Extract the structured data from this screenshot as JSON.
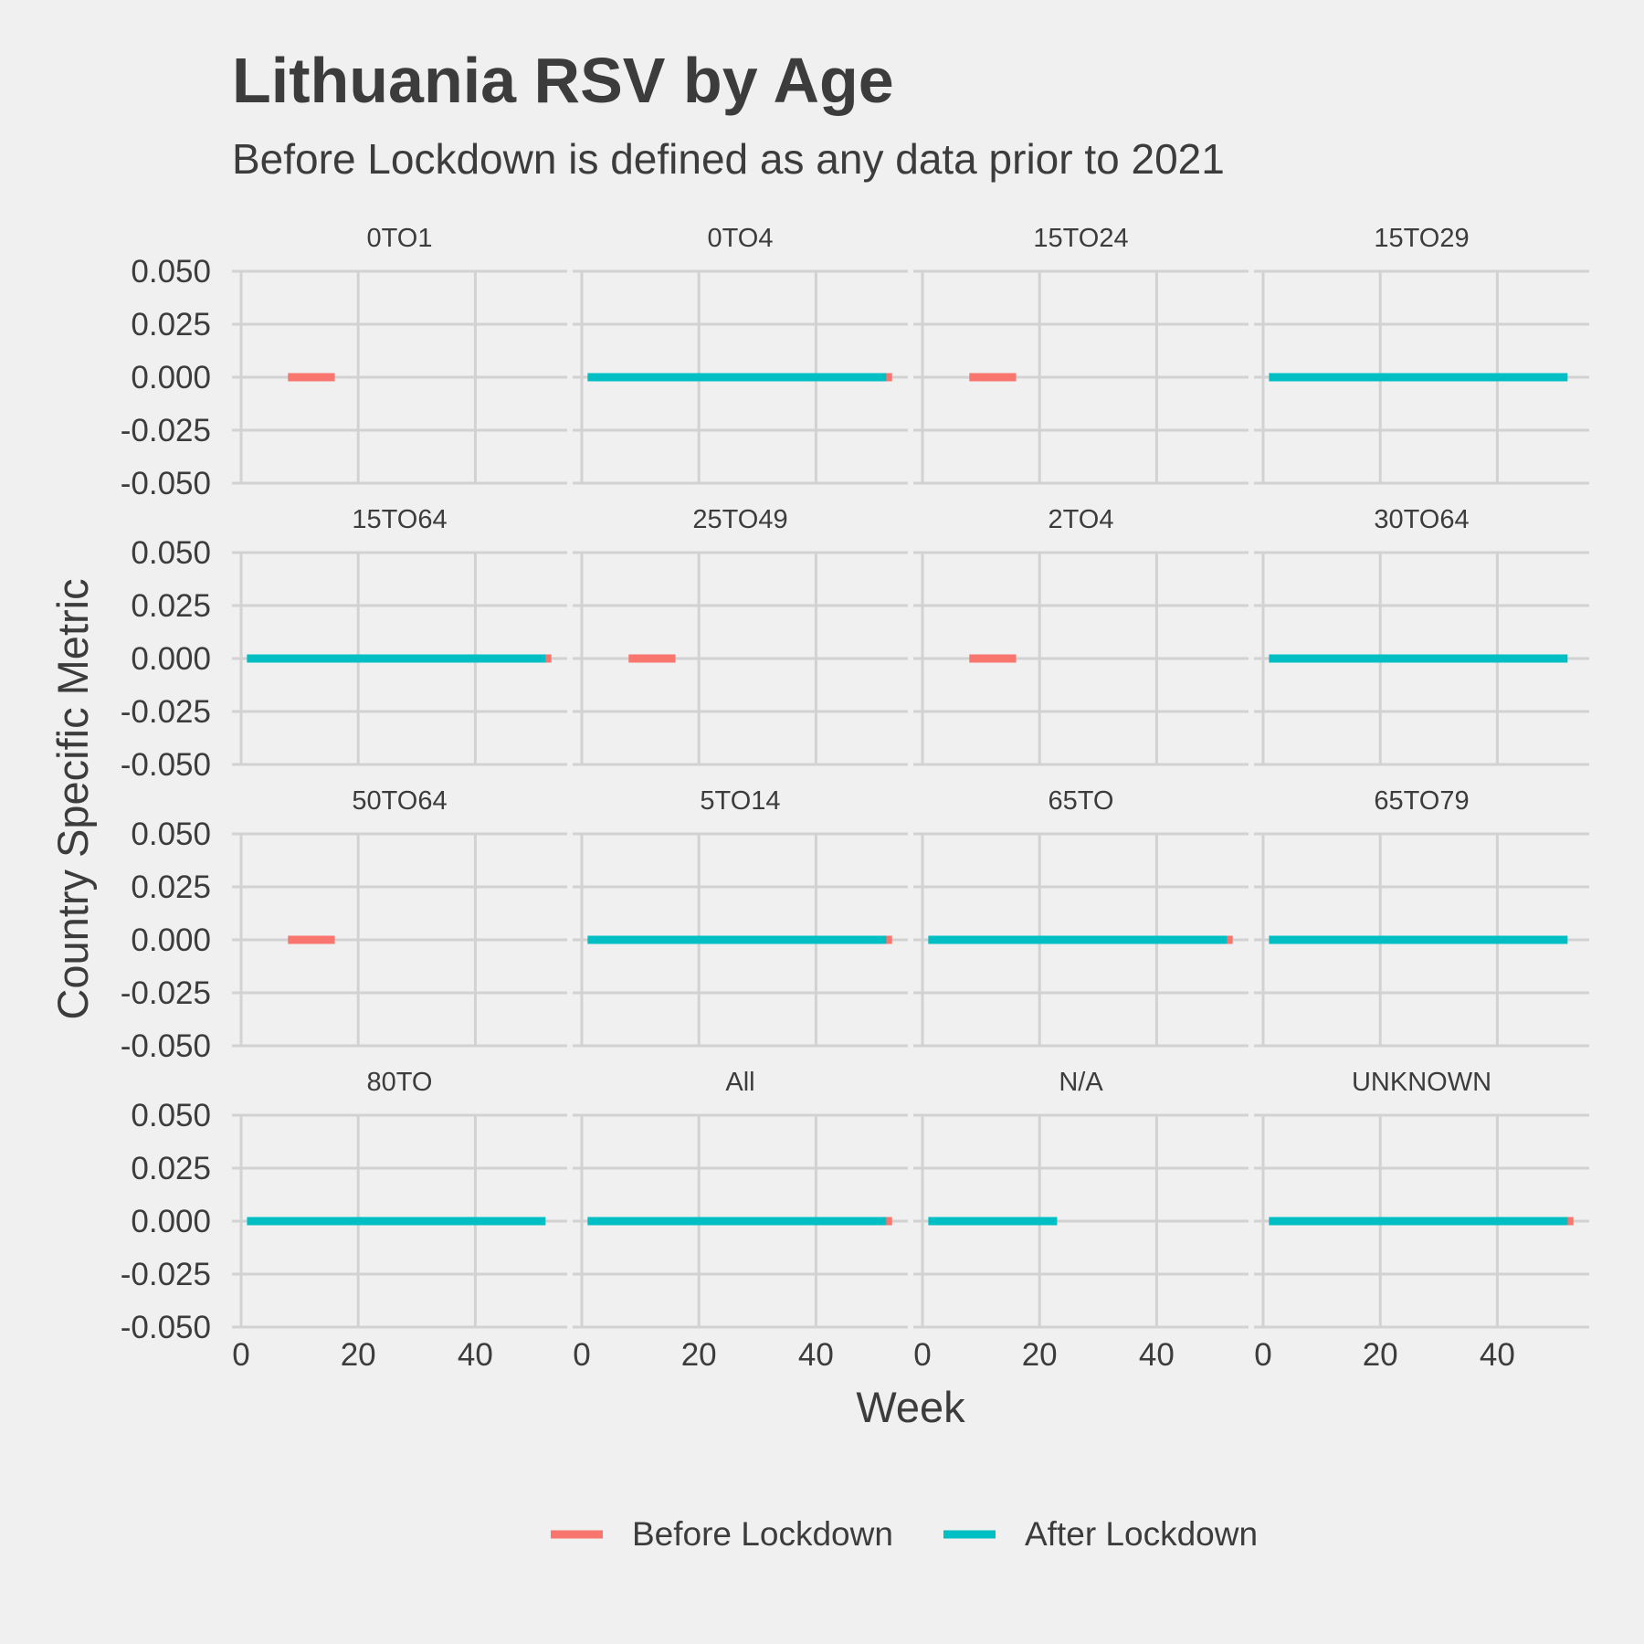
{
  "chart_data": {
    "type": "line",
    "title": "Lithuania RSV by Age",
    "subtitle": "Before Lockdown is defined as any data prior to 2021",
    "xlabel": "Week",
    "ylabel": "Country Specific Metric",
    "xlim": [
      0,
      55
    ],
    "ylim": [
      -0.05,
      0.05
    ],
    "x_ticks": [
      0,
      20,
      40
    ],
    "x_tick_labels": [
      "0",
      "20",
      "40"
    ],
    "y_ticks": [
      0.05,
      0.025,
      0,
      -0.025,
      -0.05
    ],
    "y_tick_labels": [
      "0.050",
      "0.025",
      "0.000",
      "-0.025",
      "-0.050"
    ],
    "grid": true,
    "legend_position": "bottom",
    "series_styles": [
      {
        "name": "Before Lockdown",
        "color": "#f8766d"
      },
      {
        "name": "After Lockdown",
        "color": "#00bfc4"
      }
    ],
    "facets": [
      {
        "label": "0TO1",
        "segments": [
          {
            "series": "Before Lockdown",
            "x": [
              8,
              16
            ],
            "y": 0
          }
        ]
      },
      {
        "label": "0TO4",
        "segments": [
          {
            "series": "Before Lockdown",
            "x": [
              1,
              53
            ],
            "y": 0
          },
          {
            "series": "After Lockdown",
            "x": [
              1,
              52
            ],
            "y": 0
          }
        ]
      },
      {
        "label": "15TO24",
        "segments": [
          {
            "series": "Before Lockdown",
            "x": [
              8,
              16
            ],
            "y": 0
          }
        ]
      },
      {
        "label": "15TO29",
        "segments": [
          {
            "series": "After Lockdown",
            "x": [
              1,
              52
            ],
            "y": 0
          }
        ]
      },
      {
        "label": "15TO64",
        "segments": [
          {
            "series": "Before Lockdown",
            "x": [
              1,
              53
            ],
            "y": 0
          },
          {
            "series": "After Lockdown",
            "x": [
              1,
              52
            ],
            "y": 0
          }
        ]
      },
      {
        "label": "25TO49",
        "segments": [
          {
            "series": "Before Lockdown",
            "x": [
              8,
              16
            ],
            "y": 0
          }
        ]
      },
      {
        "label": "2TO4",
        "segments": [
          {
            "series": "Before Lockdown",
            "x": [
              8,
              16
            ],
            "y": 0
          }
        ]
      },
      {
        "label": "30TO64",
        "segments": [
          {
            "series": "After Lockdown",
            "x": [
              1,
              52
            ],
            "y": 0
          }
        ]
      },
      {
        "label": "50TO64",
        "segments": [
          {
            "series": "Before Lockdown",
            "x": [
              8,
              16
            ],
            "y": 0
          }
        ]
      },
      {
        "label": "5TO14",
        "segments": [
          {
            "series": "Before Lockdown",
            "x": [
              1,
              53
            ],
            "y": 0
          },
          {
            "series": "After Lockdown",
            "x": [
              1,
              52
            ],
            "y": 0
          }
        ]
      },
      {
        "label": "65TO",
        "segments": [
          {
            "series": "Before Lockdown",
            "x": [
              1,
              53
            ],
            "y": 0
          },
          {
            "series": "After Lockdown",
            "x": [
              1,
              52
            ],
            "y": 0
          }
        ]
      },
      {
        "label": "65TO79",
        "segments": [
          {
            "series": "After Lockdown",
            "x": [
              1,
              52
            ],
            "y": 0
          }
        ]
      },
      {
        "label": "80TO",
        "segments": [
          {
            "series": "Before Lockdown",
            "x": [
              8,
              16
            ],
            "y": 0
          },
          {
            "series": "After Lockdown",
            "x": [
              1,
              52
            ],
            "y": 0
          }
        ]
      },
      {
        "label": "All",
        "segments": [
          {
            "series": "Before Lockdown",
            "x": [
              1,
              53
            ],
            "y": 0
          },
          {
            "series": "After Lockdown",
            "x": [
              1,
              52
            ],
            "y": 0
          }
        ]
      },
      {
        "label": "N/A",
        "segments": [
          {
            "series": "After Lockdown",
            "x": [
              1,
              23
            ],
            "y": 0
          }
        ]
      },
      {
        "label": "UNKNOWN",
        "segments": [
          {
            "series": "Before Lockdown",
            "x": [
              1,
              53
            ],
            "y": 0
          },
          {
            "series": "After Lockdown",
            "x": [
              1,
              52
            ],
            "y": 0
          }
        ]
      }
    ]
  }
}
